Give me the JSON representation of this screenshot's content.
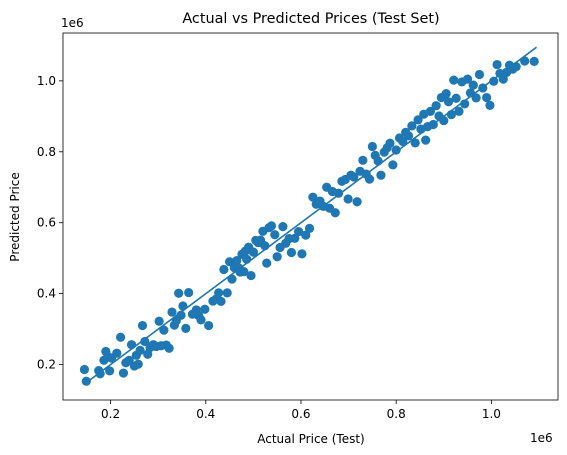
{
  "chart_data": {
    "type": "scatter",
    "title": "Actual vs Predicted Prices (Test Set)",
    "xlabel": "Actual Price (Test)",
    "ylabel": "Predicted Price",
    "x_offset_label": "1e6",
    "y_offset_label": "1e6",
    "xlim": [
      0.1,
      1.14
    ],
    "ylim": [
      0.1,
      1.135
    ],
    "x_ticks": [
      0.2,
      0.4,
      0.6,
      0.8,
      1.0
    ],
    "x_tick_labels": [
      "0.2",
      "0.4",
      "0.6",
      "0.8",
      "1.0"
    ],
    "y_ticks": [
      0.2,
      0.4,
      0.6,
      0.8,
      1.0
    ],
    "y_tick_labels": [
      "0.2",
      "0.4",
      "0.6",
      "0.8",
      "1.0"
    ],
    "grid": false,
    "colors": {
      "points": "#1f77b4",
      "line": "#1f77b4"
    },
    "reference_line": {
      "x": [
        0.145,
        1.095
      ],
      "y": [
        0.145,
        1.095
      ]
    },
    "points": [
      [
        0.145,
        0.186
      ],
      [
        0.149,
        0.153
      ],
      [
        0.175,
        0.183
      ],
      [
        0.178,
        0.174
      ],
      [
        0.186,
        0.212
      ],
      [
        0.19,
        0.237
      ],
      [
        0.194,
        0.223
      ],
      [
        0.198,
        0.182
      ],
      [
        0.202,
        0.218
      ],
      [
        0.213,
        0.232
      ],
      [
        0.221,
        0.277
      ],
      [
        0.227,
        0.176
      ],
      [
        0.232,
        0.205
      ],
      [
        0.239,
        0.212
      ],
      [
        0.244,
        0.256
      ],
      [
        0.25,
        0.196
      ],
      [
        0.254,
        0.226
      ],
      [
        0.258,
        0.201
      ],
      [
        0.262,
        0.24
      ],
      [
        0.267,
        0.31
      ],
      [
        0.272,
        0.265
      ],
      [
        0.278,
        0.229
      ],
      [
        0.283,
        0.248
      ],
      [
        0.29,
        0.256
      ],
      [
        0.296,
        0.251
      ],
      [
        0.302,
        0.322
      ],
      [
        0.306,
        0.253
      ],
      [
        0.312,
        0.297
      ],
      [
        0.317,
        0.255
      ],
      [
        0.323,
        0.246
      ],
      [
        0.329,
        0.348
      ],
      [
        0.334,
        0.311
      ],
      [
        0.338,
        0.324
      ],
      [
        0.343,
        0.401
      ],
      [
        0.348,
        0.339
      ],
      [
        0.352,
        0.365
      ],
      [
        0.358,
        0.302
      ],
      [
        0.364,
        0.403
      ],
      [
        0.372,
        0.342
      ],
      [
        0.38,
        0.354
      ],
      [
        0.385,
        0.338
      ],
      [
        0.39,
        0.326
      ],
      [
        0.398,
        0.356
      ],
      [
        0.406,
        0.31
      ],
      [
        0.415,
        0.379
      ],
      [
        0.422,
        0.385
      ],
      [
        0.427,
        0.402
      ],
      [
        0.432,
        0.378
      ],
      [
        0.438,
        0.468
      ],
      [
        0.445,
        0.402
      ],
      [
        0.45,
        0.49
      ],
      [
        0.455,
        0.441
      ],
      [
        0.46,
        0.473
      ],
      [
        0.465,
        0.493
      ],
      [
        0.47,
        0.472
      ],
      [
        0.472,
        0.461
      ],
      [
        0.476,
        0.511
      ],
      [
        0.48,
        0.462
      ],
      [
        0.483,
        0.52
      ],
      [
        0.486,
        0.497
      ],
      [
        0.49,
        0.531
      ],
      [
        0.495,
        0.451
      ],
      [
        0.5,
        0.517
      ],
      [
        0.505,
        0.55
      ],
      [
        0.51,
        0.544
      ],
      [
        0.515,
        0.551
      ],
      [
        0.52,
        0.576
      ],
      [
        0.524,
        0.535
      ],
      [
        0.528,
        0.486
      ],
      [
        0.533,
        0.586
      ],
      [
        0.538,
        0.591
      ],
      [
        0.545,
        0.566
      ],
      [
        0.55,
        0.504
      ],
      [
        0.556,
        0.53
      ],
      [
        0.562,
        0.589
      ],
      [
        0.568,
        0.542
      ],
      [
        0.575,
        0.555
      ],
      [
        0.58,
        0.516
      ],
      [
        0.587,
        0.556
      ],
      [
        0.595,
        0.575
      ],
      [
        0.602,
        0.512
      ],
      [
        0.61,
        0.565
      ],
      [
        0.618,
        0.584
      ],
      [
        0.625,
        0.672
      ],
      [
        0.632,
        0.652
      ],
      [
        0.64,
        0.661
      ],
      [
        0.647,
        0.646
      ],
      [
        0.654,
        0.7
      ],
      [
        0.66,
        0.641
      ],
      [
        0.666,
        0.688
      ],
      [
        0.672,
        0.628
      ],
      [
        0.679,
        0.683
      ],
      [
        0.686,
        0.717
      ],
      [
        0.693,
        0.722
      ],
      [
        0.699,
        0.667
      ],
      [
        0.705,
        0.734
      ],
      [
        0.711,
        0.729
      ],
      [
        0.718,
        0.659
      ],
      [
        0.724,
        0.745
      ],
      [
        0.73,
        0.776
      ],
      [
        0.737,
        0.737
      ],
      [
        0.744,
        0.723
      ],
      [
        0.75,
        0.815
      ],
      [
        0.756,
        0.79
      ],
      [
        0.762,
        0.774
      ],
      [
        0.768,
        0.734
      ],
      [
        0.775,
        0.799
      ],
      [
        0.781,
        0.811
      ],
      [
        0.787,
        0.824
      ],
      [
        0.793,
        0.763
      ],
      [
        0.8,
        0.805
      ],
      [
        0.807,
        0.839
      ],
      [
        0.814,
        0.829
      ],
      [
        0.82,
        0.855
      ],
      [
        0.826,
        0.845
      ],
      [
        0.833,
        0.873
      ],
      [
        0.84,
        0.825
      ],
      [
        0.846,
        0.89
      ],
      [
        0.852,
        0.864
      ],
      [
        0.858,
        0.906
      ],
      [
        0.862,
        0.833
      ],
      [
        0.866,
        0.871
      ],
      [
        0.872,
        0.914
      ],
      [
        0.878,
        0.877
      ],
      [
        0.884,
        0.93
      ],
      [
        0.89,
        0.901
      ],
      [
        0.895,
        0.953
      ],
      [
        0.9,
        0.888
      ],
      [
        0.905,
        0.964
      ],
      [
        0.91,
        0.941
      ],
      [
        0.916,
        0.905
      ],
      [
        0.921,
        1.002
      ],
      [
        0.926,
        0.951
      ],
      [
        0.932,
        0.914
      ],
      [
        0.938,
        0.997
      ],
      [
        0.944,
        0.935
      ],
      [
        0.95,
        1.005
      ],
      [
        0.956,
        0.966
      ],
      [
        0.962,
        0.988
      ],
      [
        0.968,
        0.952
      ],
      [
        0.975,
        1.018
      ],
      [
        0.982,
        0.98
      ],
      [
        0.99,
        0.953
      ],
      [
        0.997,
        0.931
      ],
      [
        1.005,
        0.999
      ],
      [
        1.012,
        1.046
      ],
      [
        1.018,
        1.021
      ],
      [
        1.025,
        1.005
      ],
      [
        1.032,
        1.024
      ],
      [
        1.038,
        1.044
      ],
      [
        1.045,
        1.033
      ],
      [
        1.052,
        1.04
      ],
      [
        1.07,
        1.056
      ],
      [
        1.09,
        1.055
      ]
    ]
  }
}
